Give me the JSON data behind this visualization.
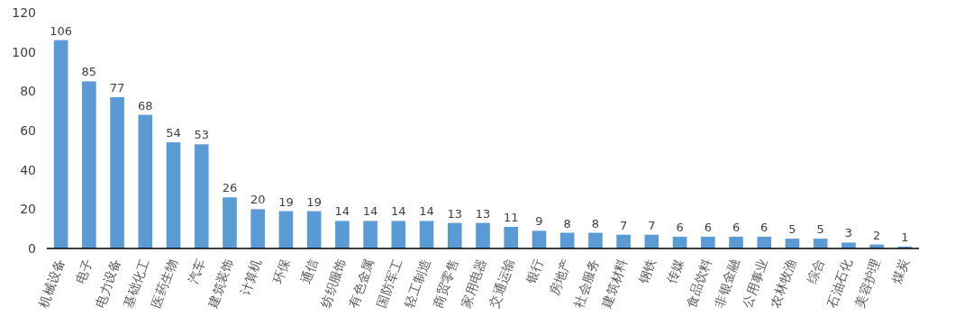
{
  "chart_data": {
    "type": "bar",
    "categories": [
      "机械设备",
      "电子",
      "电力设备",
      "基础化工",
      "医药生物",
      "汽车",
      "建筑装饰",
      "计算机",
      "环保",
      "通信",
      "纺织服饰",
      "有色金属",
      "国防军工",
      "轻工制造",
      "商贸零售",
      "家用电器",
      "交通运输",
      "银行",
      "房地产",
      "社会服务",
      "建筑材料",
      "钢铁",
      "传媒",
      "食品饮料",
      "非银金融",
      "公用事业",
      "农林牧渔",
      "综合",
      "石油石化",
      "美容护理",
      "煤炭"
    ],
    "values": [
      106,
      85,
      77,
      68,
      54,
      53,
      26,
      20,
      19,
      19,
      14,
      14,
      14,
      14,
      13,
      13,
      11,
      9,
      8,
      8,
      7,
      7,
      6,
      6,
      6,
      6,
      5,
      5,
      3,
      2,
      1
    ],
    "color": "#5b9bd5",
    "ylim": [
      0,
      120
    ],
    "yticks": [
      0,
      20,
      40,
      60,
      80,
      100,
      120
    ],
    "data_labels": true
  }
}
